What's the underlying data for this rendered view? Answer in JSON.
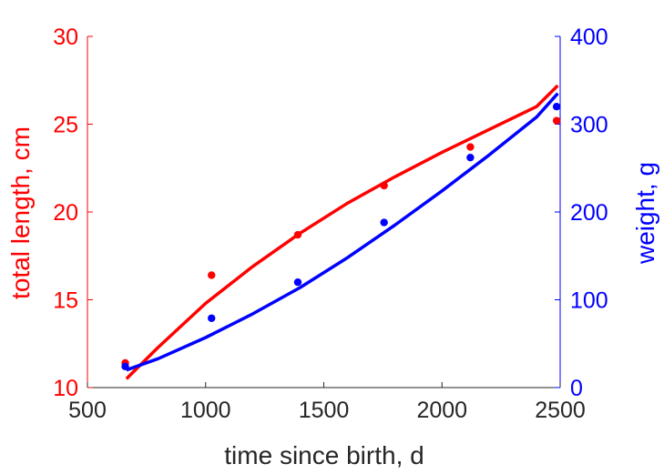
{
  "chart_data": {
    "type": "scatter",
    "title": "",
    "xlabel": "time since birth, d",
    "ylabel_left": "total length, cm",
    "ylabel_right": "weight, g",
    "xlim": [
      500,
      2500
    ],
    "ylim_left": [
      10,
      30
    ],
    "ylim_right": [
      0,
      400
    ],
    "x_ticks": [
      "500",
      "1000",
      "1500",
      "2000",
      "2500"
    ],
    "y_left_ticks": [
      "10",
      "15",
      "20",
      "25",
      "30"
    ],
    "y_right_ticks": [
      "0",
      "100",
      "200",
      "300",
      "400"
    ],
    "grid": false,
    "legend": "none",
    "colors": {
      "left": "#ff0000",
      "right": "#0000ff",
      "text": "#262626"
    },
    "series": [
      {
        "axis": "left",
        "color": "#ff0000",
        "points": {
          "x": [
            660,
            1025,
            1390,
            1755,
            2120,
            2485
          ],
          "y": [
            11.4,
            16.4,
            18.7,
            21.5,
            23.7,
            25.2
          ]
        },
        "fit": {
          "x": [
            665,
            800,
            1000,
            1200,
            1400,
            1600,
            1800,
            2000,
            2200,
            2400,
            2490
          ],
          "y": [
            10.5,
            12.3,
            14.8,
            16.9,
            18.8,
            20.5,
            22.0,
            23.4,
            24.7,
            26.0,
            27.2
          ]
        }
      },
      {
        "axis": "right",
        "color": "#0000ff",
        "points": {
          "x": [
            660,
            1025,
            1390,
            1755,
            2120,
            2485
          ],
          "y": [
            24,
            79,
            120,
            188,
            262,
            320
          ]
        },
        "fit": {
          "x": [
            665,
            800,
            1000,
            1200,
            1400,
            1600,
            1800,
            2000,
            2200,
            2400,
            2490
          ],
          "y": [
            20,
            33,
            57,
            84,
            114,
            148,
            185,
            224,
            265,
            308,
            335
          ]
        }
      }
    ]
  }
}
